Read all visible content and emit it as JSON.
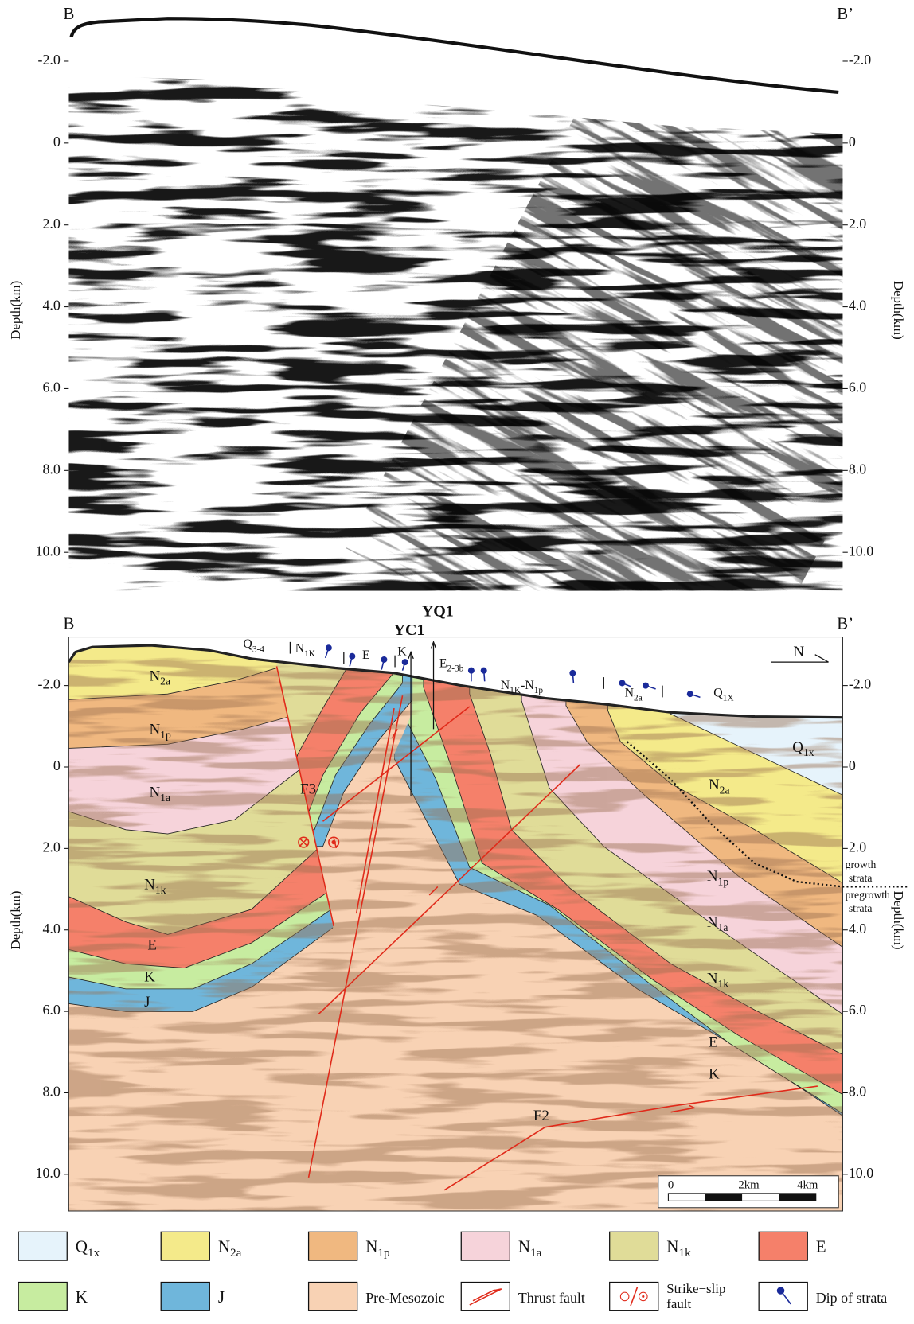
{
  "top_section": {
    "left_end": "B",
    "right_end": "B’",
    "axis_title": "Depth(km)",
    "depth_ticks": [
      "-2.0",
      "0",
      "2.0",
      "4.0",
      "6.0",
      "8.0",
      "10.0"
    ]
  },
  "bottom_section": {
    "left_end": "B",
    "right_end": "B’",
    "axis_title": "Depth(km)",
    "depth_ticks": [
      "-2.0",
      "0",
      "2.0",
      "4.0",
      "6.0",
      "8.0",
      "10.0"
    ],
    "wells": [
      "YQ1",
      "YC1"
    ],
    "surface_labels": [
      [
        "Q",
        "3-4"
      ],
      [
        "N",
        "1K"
      ],
      [
        "E"
      ],
      [
        "K"
      ],
      [
        "E",
        "2-3b"
      ],
      [
        "N",
        "1K",
        "-N",
        "1p"
      ],
      [
        "N",
        "2a"
      ],
      [
        "Q",
        "1X"
      ]
    ],
    "unit_labels": [
      [
        "N",
        "2a"
      ],
      [
        "N",
        "1p"
      ],
      [
        "N",
        "1a"
      ],
      [
        "N",
        "1k"
      ],
      [
        "E"
      ],
      [
        "K"
      ],
      [
        "J"
      ],
      [
        "Q",
        "1x"
      ],
      [
        "N",
        "2a"
      ],
      [
        "N",
        "1p"
      ],
      [
        "N",
        "1a"
      ],
      [
        "N",
        "1k"
      ],
      [
        "E"
      ],
      [
        "K"
      ]
    ],
    "faults": [
      "F3",
      "F2"
    ],
    "north": "N",
    "growth_strata": [
      "growth",
      "strata"
    ],
    "pregrowth_strata": [
      "pregrowth",
      "strata"
    ],
    "scale_bar": [
      "0",
      "2km",
      "4km"
    ]
  },
  "legend": [
    [
      "Q",
      "1x"
    ],
    [
      "N",
      "2a"
    ],
    [
      "N",
      "1p"
    ],
    [
      "N",
      "1a"
    ],
    [
      "N",
      "1k"
    ],
    [
      "E"
    ],
    [
      "K"
    ],
    [
      "J"
    ],
    [
      "Pre-Mesozoic"
    ],
    [
      "Thrust  fault"
    ],
    [
      "Strike−slip",
      "fault"
    ],
    [
      "Dip of strata"
    ]
  ]
}
